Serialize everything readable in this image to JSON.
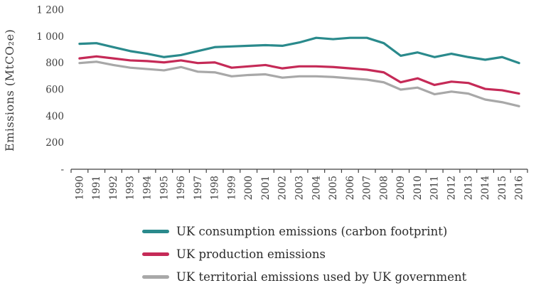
{
  "chart_data": {
    "type": "line",
    "title": "",
    "xlabel": "",
    "ylabel": "Emissions (MtCO₂e)",
    "ylim": [
      0,
      1200
    ],
    "yticks": [
      0,
      200,
      400,
      600,
      800,
      1000,
      1200
    ],
    "ytick_labels": [
      "-",
      "200",
      "400",
      "600",
      "800",
      "1 000",
      "1 200"
    ],
    "grid": false,
    "legend_position": "bottom",
    "axis_color": "#404040",
    "text_color": "#3d3d3d",
    "categories": [
      "1990",
      "1991",
      "1992",
      "1993",
      "1994",
      "1995",
      "1996",
      "1997",
      "1998",
      "1999",
      "2000",
      "2001",
      "2002",
      "2003",
      "2004",
      "2005",
      "2006",
      "2007",
      "2008",
      "2009",
      "2010",
      "2011",
      "2012",
      "2013",
      "2014",
      "2015",
      "2016"
    ],
    "series": [
      {
        "name": "UK consumption emissions (carbon footprint)",
        "color": "#2a8a8c",
        "values": [
          945,
          950,
          920,
          890,
          870,
          845,
          860,
          890,
          920,
          925,
          930,
          935,
          930,
          955,
          990,
          980,
          990,
          990,
          950,
          855,
          880,
          845,
          870,
          845,
          825,
          845,
          800
        ]
      },
      {
        "name": "UK production emissions",
        "color": "#c52a57",
        "values": [
          835,
          850,
          835,
          820,
          815,
          805,
          820,
          800,
          805,
          765,
          775,
          785,
          760,
          775,
          775,
          770,
          760,
          750,
          730,
          655,
          685,
          635,
          660,
          650,
          605,
          595,
          570
        ]
      },
      {
        "name": "UK territorial emissions used by UK government",
        "color": "#a8a8a8",
        "values": [
          800,
          810,
          785,
          765,
          755,
          745,
          770,
          735,
          730,
          700,
          710,
          715,
          690,
          700,
          700,
          695,
          685,
          675,
          655,
          600,
          615,
          565,
          585,
          570,
          525,
          505,
          475
        ]
      }
    ]
  }
}
